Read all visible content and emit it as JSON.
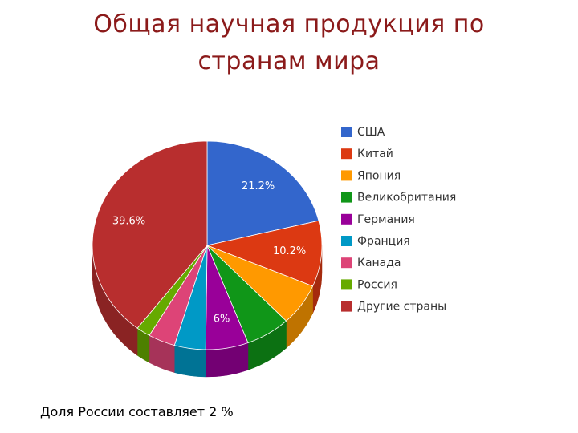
{
  "chart_data": {
    "type": "pie",
    "title": "Общая научная продукция по странам мира",
    "categories": [
      "США",
      "Китай",
      "Япония",
      "Великобритания",
      "Германия",
      "Франция",
      "Канада",
      "Россия",
      "Другие страны"
    ],
    "values": [
      21.2,
      10.2,
      6.5,
      6.3,
      6,
      4.4,
      3.8,
      2,
      39.6
    ],
    "value_labels": [
      "21.2%",
      "10.2%",
      null,
      null,
      "6%",
      null,
      null,
      null,
      "39.6%"
    ],
    "colors": [
      "#3366cc",
      "#dc3912",
      "#ff9900",
      "#109618",
      "#990099",
      "#0099c6",
      "#dd4477",
      "#66aa00",
      "#b82e2e"
    ],
    "legend": "right",
    "annotation": "Доля России составляет 2 %"
  }
}
